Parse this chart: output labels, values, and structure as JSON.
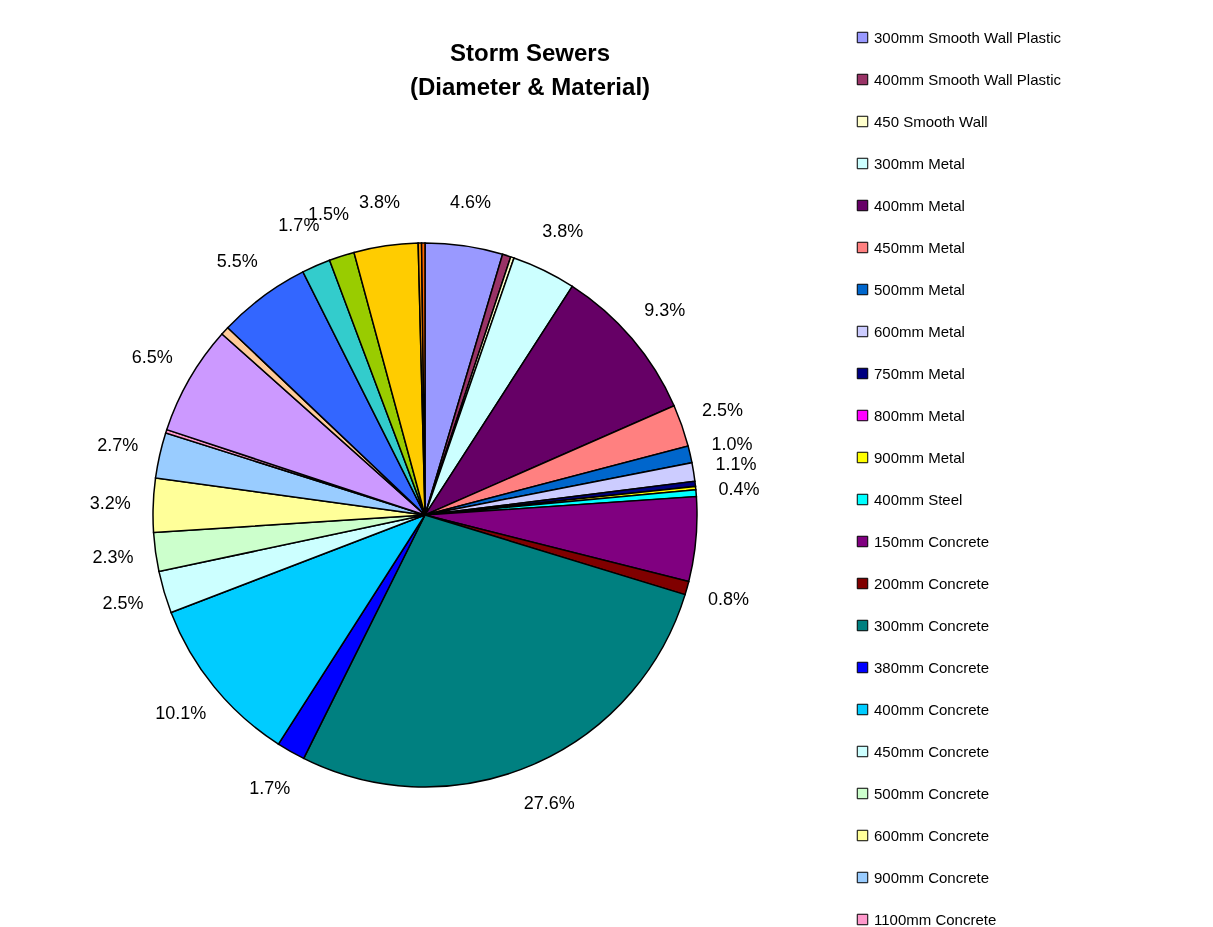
{
  "chart_data": {
    "type": "pie",
    "title": "Storm Sewers\n(Diameter & Material)",
    "legend": "right",
    "categories": [
      "300mm Smooth Wall Plastic",
      "400mm Smooth Wall Plastic",
      "450 Smooth Wall",
      "300mm Metal",
      "400mm Metal",
      "450mm Metal",
      "500mm Metal",
      "600mm Metal",
      "750mm Metal",
      "800mm Metal",
      "900mm Metal",
      "400mm Steel",
      "150mm Concrete",
      "200mm Concrete",
      "300mm Concrete",
      "380mm Concrete",
      "400mm Concrete",
      "450mm Concrete",
      "500mm Concrete",
      "600mm Concrete",
      "900mm Concrete",
      "1100mm Concrete",
      null,
      null,
      null,
      null,
      null,
      null,
      null,
      null
    ],
    "values": [
      4.6,
      0.5,
      0.2,
      3.8,
      9.3,
      2.5,
      1.0,
      1.1,
      0.3,
      null,
      0.2,
      0.4,
      5.0,
      0.8,
      27.6,
      1.7,
      10.1,
      2.5,
      2.3,
      3.2,
      2.7,
      0.2,
      6.5,
      0.5,
      5.5,
      1.7,
      1.5,
      3.8,
      0.2,
      0.2
    ],
    "value_labels": [
      "4.6%",
      null,
      null,
      "3.8%",
      "9.3%",
      "2.5%",
      "1.0%",
      "1.1%",
      null,
      null,
      null,
      "0.4%",
      null,
      "0.8%",
      "27.6%",
      "1.7%",
      "10.1%",
      "2.5%",
      "2.3%",
      "3.2%",
      "2.7%",
      null,
      "6.5%",
      null,
      "5.5%",
      "1.7%",
      "1.5%",
      "3.8%",
      null,
      null
    ],
    "colors": [
      "#9999ff",
      "#993366",
      "#ffffcc",
      "#ccffff",
      "#660066",
      "#ff8080",
      "#0066cc",
      "#ccccff",
      "#000080",
      "#ff00ff",
      "#ffff00",
      "#00ffff",
      "#800080",
      "#800000",
      "#008080",
      "#0000ff",
      "#00ccff",
      "#ccffff",
      "#ccffcc",
      "#ffff99",
      "#99ccff",
      "#ff99cc",
      "#cc99ff",
      "#ffcc99",
      "#3366ff",
      "#33cccc",
      "#99cc00",
      "#ffcc00",
      "#ff9900",
      "#ff6600"
    ]
  }
}
